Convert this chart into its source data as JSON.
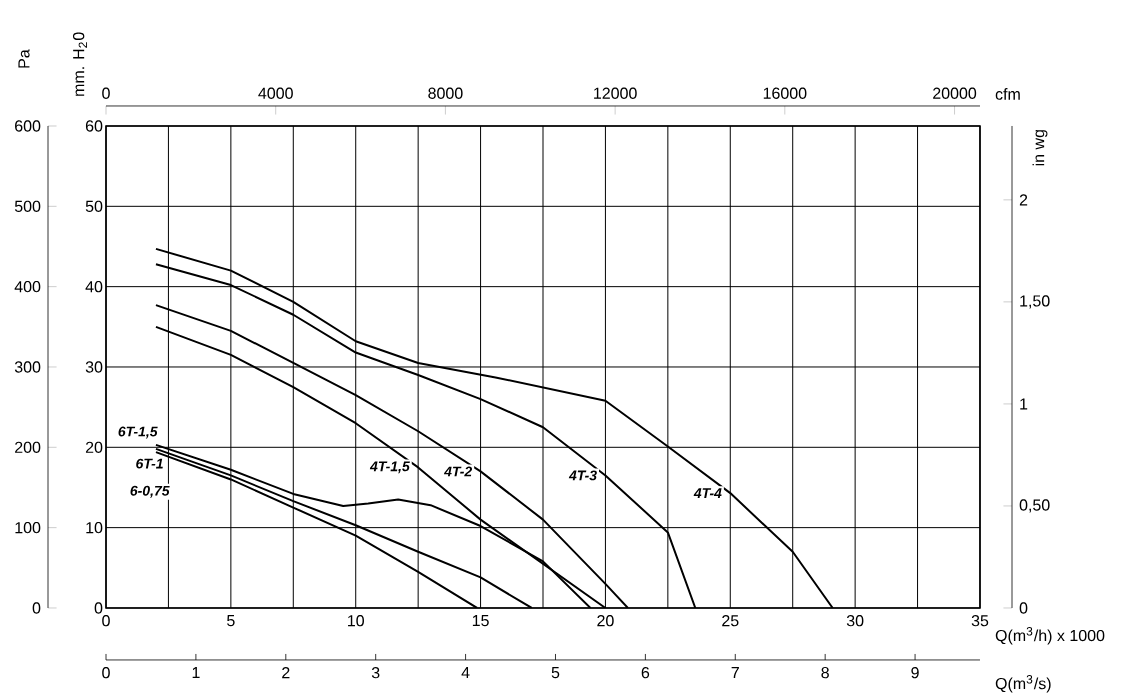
{
  "chart_data": {
    "type": "line",
    "xlabel": "Q(m$^{3}$/h) x 1000",
    "ylabel": "mm. H$_{2}$0",
    "y2label": "Pa",
    "y3label": "in wg",
    "x2label": "cfm",
    "annotations": [
      "Q(m$^{3}$/s)",
      "0",
      "1",
      "2",
      "3",
      "4",
      "5",
      "6",
      "7",
      "8",
      "9"
    ],
    "xlim": [
      0,
      35
    ],
    "xticks": [
      0,
      {
        "value": 2.5,
        "label": null
      },
      5,
      {
        "value": 7.5,
        "label": null
      },
      10,
      {
        "value": 12.5,
        "label": null
      },
      15,
      {
        "value": 17.5,
        "label": null
      },
      20,
      {
        "value": 22.5,
        "label": null
      },
      25,
      {
        "value": 27.5,
        "label": null
      },
      30,
      {
        "value": 32.5,
        "label": null
      },
      35
    ],
    "ylim": [
      0,
      60
    ],
    "yticks": [
      0,
      10,
      20,
      30,
      40,
      50,
      60
    ],
    "y2lim": [
      0,
      600
    ],
    "y2ticks": [
      0,
      100,
      200,
      300,
      400,
      500,
      600
    ],
    "y3lim": [
      0,
      2.362
    ],
    "y3ticks": [
      0,
      {
        "value": 0.5,
        "label": "0,50"
      },
      1,
      {
        "value": 1.5,
        "label": "1,50"
      },
      2
    ],
    "x2lim": [
      0,
      20600
    ],
    "x2ticks": [
      0,
      4000,
      8000,
      12000,
      16000,
      20000
    ],
    "grid": true,
    "legend": false,
    "marker": "none",
    "line_style": "solid",
    "series": [
      {
        "name": "6T-1,5",
        "color": "#000000",
        "x": [
          2,
          5,
          7.5,
          9.5,
          10.5,
          11.7,
          13,
          15,
          17.5,
          19.4
        ],
        "values": [
          20.3,
          17.2,
          14.2,
          12.7,
          13,
          13.5,
          12.8,
          10.2,
          5.8,
          0
        ]
      },
      {
        "name": "6T-1",
        "color": "#000000",
        "x": [
          2,
          5,
          7.5,
          10,
          12.5,
          15,
          17.05
        ],
        "values": [
          19.8,
          16.5,
          13.3,
          10.3,
          7,
          3.8,
          0
        ]
      },
      {
        "name": "6-0,75",
        "color": "#000000",
        "x": [
          2,
          5,
          7.5,
          10,
          12.5,
          14.86
        ],
        "values": [
          19.4,
          16,
          12.5,
          9,
          4.5,
          0
        ]
      },
      {
        "name": "4T-1,5",
        "color": "#000000",
        "x": [
          2,
          5,
          7.5,
          10,
          12.5,
          15,
          17.5,
          20
        ],
        "values": [
          35,
          31.5,
          27.5,
          23,
          17.5,
          11,
          5.5,
          0
        ]
      },
      {
        "name": "4T-2",
        "color": "#000000",
        "x": [
          2,
          5,
          7.5,
          10,
          12.5,
          15,
          17.5,
          20,
          20.9
        ],
        "values": [
          37.7,
          34.5,
          30.5,
          26.5,
          22,
          17,
          11,
          3,
          0
        ]
      },
      {
        "name": "4T-3",
        "color": "#000000",
        "x": [
          2,
          5,
          7.5,
          10,
          12.5,
          15,
          17.5,
          20,
          22.5,
          23.6
        ],
        "values": [
          42.8,
          40.2,
          36.5,
          31.8,
          29,
          26,
          22.5,
          16.5,
          9.4,
          0
        ]
      },
      {
        "name": "4T-4",
        "color": "#000000",
        "x": [
          2,
          5,
          7.5,
          10,
          12.5,
          15.6,
          20,
          22.5,
          25,
          27.5,
          29.1
        ],
        "values": [
          44.7,
          42,
          38.1,
          33.2,
          30.5,
          28.7,
          25.8,
          20.1,
          14.3,
          7,
          0
        ]
      }
    ]
  }
}
